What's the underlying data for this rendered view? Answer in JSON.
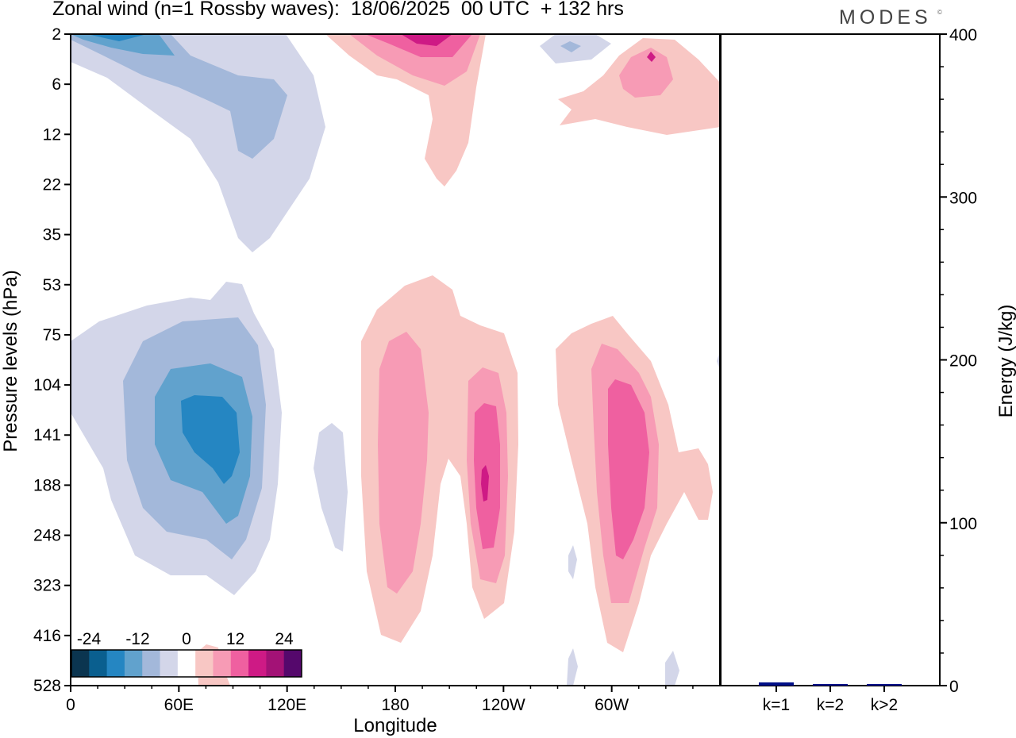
{
  "title": "Zonal wind (n=1 Rossby waves):  18/06/2025  00 UTC  + 132 hrs",
  "logo": "MODES",
  "logo_mark": "©",
  "chart_data": [
    {
      "type": "heatmap",
      "plot": "contour",
      "title": "Zonal wind (n=1 Rossby waves):  18/06/2025  00 UTC  + 132 hrs",
      "xlabel": "Longitude",
      "ylabel": "Pressure levels (hPa)",
      "x_ticks": [
        "0",
        "60E",
        "120E",
        "180",
        "120W",
        "60W"
      ],
      "x_tick_values": [
        0,
        60,
        120,
        180,
        240,
        300
      ],
      "xlim": [
        0,
        360
      ],
      "y_ticks": [
        "2",
        "6",
        "12",
        "22",
        "35",
        "53",
        "75",
        "104",
        "141",
        "188",
        "248",
        "323",
        "416",
        "528"
      ],
      "y_scale": "log",
      "y_inverted": true,
      "grid": false,
      "colorbar": {
        "position": "bottom-left",
        "labels": [
          "-24",
          "-12",
          "0",
          "12",
          "24"
        ],
        "levels": [
          -28,
          -24,
          -20,
          -16,
          -12,
          -8,
          -4,
          4,
          8,
          12,
          16,
          20,
          24,
          28
        ],
        "colors": [
          "#0b3550",
          "#0a5f8f",
          "#2586c2",
          "#61a2cd",
          "#a3b8da",
          "#d3d6e9",
          "#ffffff",
          "#f8c7c4",
          "#f79bb5",
          "#ef60a0",
          "#ce1a85",
          "#a31276",
          "#55086c"
        ]
      },
      "contours": [
        {
          "level": -4,
          "center": [
            53,
            0.33
          ],
          "sigma": [
            50,
            0.28
          ],
          "note": "upper stratosphere, 0-110E, 2-35 hPa"
        },
        {
          "level": -12,
          "center": [
            78,
            0.7
          ],
          "sigma": [
            36,
            0.22
          ],
          "note": "upper-level easterly core, 30-110E"
        },
        {
          "level": -8,
          "center": [
            70,
            0.86
          ],
          "sigma": [
            45,
            0.14
          ],
          "note": "lower-level trough"
        },
        {
          "level": -20,
          "center": [
            75,
            0.58
          ],
          "sigma": [
            20,
            0.12
          ],
          "note": "core ~141-188 hPa"
        },
        {
          "level": 8,
          "center": [
            200,
            0.58
          ],
          "sigma": [
            28,
            0.16
          ],
          "note": "positive anomaly 180-120W"
        },
        {
          "level": 16,
          "center": [
            240,
            0.65
          ],
          "sigma": [
            15,
            0.12
          ]
        },
        {
          "level": 20,
          "center": [
            243,
            0.65
          ],
          "sigma": [
            8,
            0.07
          ]
        },
        {
          "level": 8,
          "center": [
            305,
            0.63
          ],
          "sigma": [
            30,
            0.14
          ]
        },
        {
          "level": 16,
          "center": [
            308,
            0.65
          ],
          "sigma": [
            18,
            0.12
          ]
        },
        {
          "level": 12,
          "center": [
            195,
            0.05
          ],
          "sigma": [
            40,
            0.06
          ]
        },
        {
          "level": 8,
          "center": [
            320,
            0.1
          ],
          "sigma": [
            28,
            0.07
          ]
        }
      ]
    },
    {
      "type": "bar",
      "categories": [
        "k=1",
        "k=2",
        "k>2"
      ],
      "values": [
        2.0,
        1.0,
        1.0
      ],
      "ylabel": "Energy (J/kg)",
      "ylim": [
        0,
        400
      ],
      "y_ticks": [
        "0",
        "100",
        "200",
        "300",
        "400"
      ],
      "color": "#001088"
    }
  ]
}
